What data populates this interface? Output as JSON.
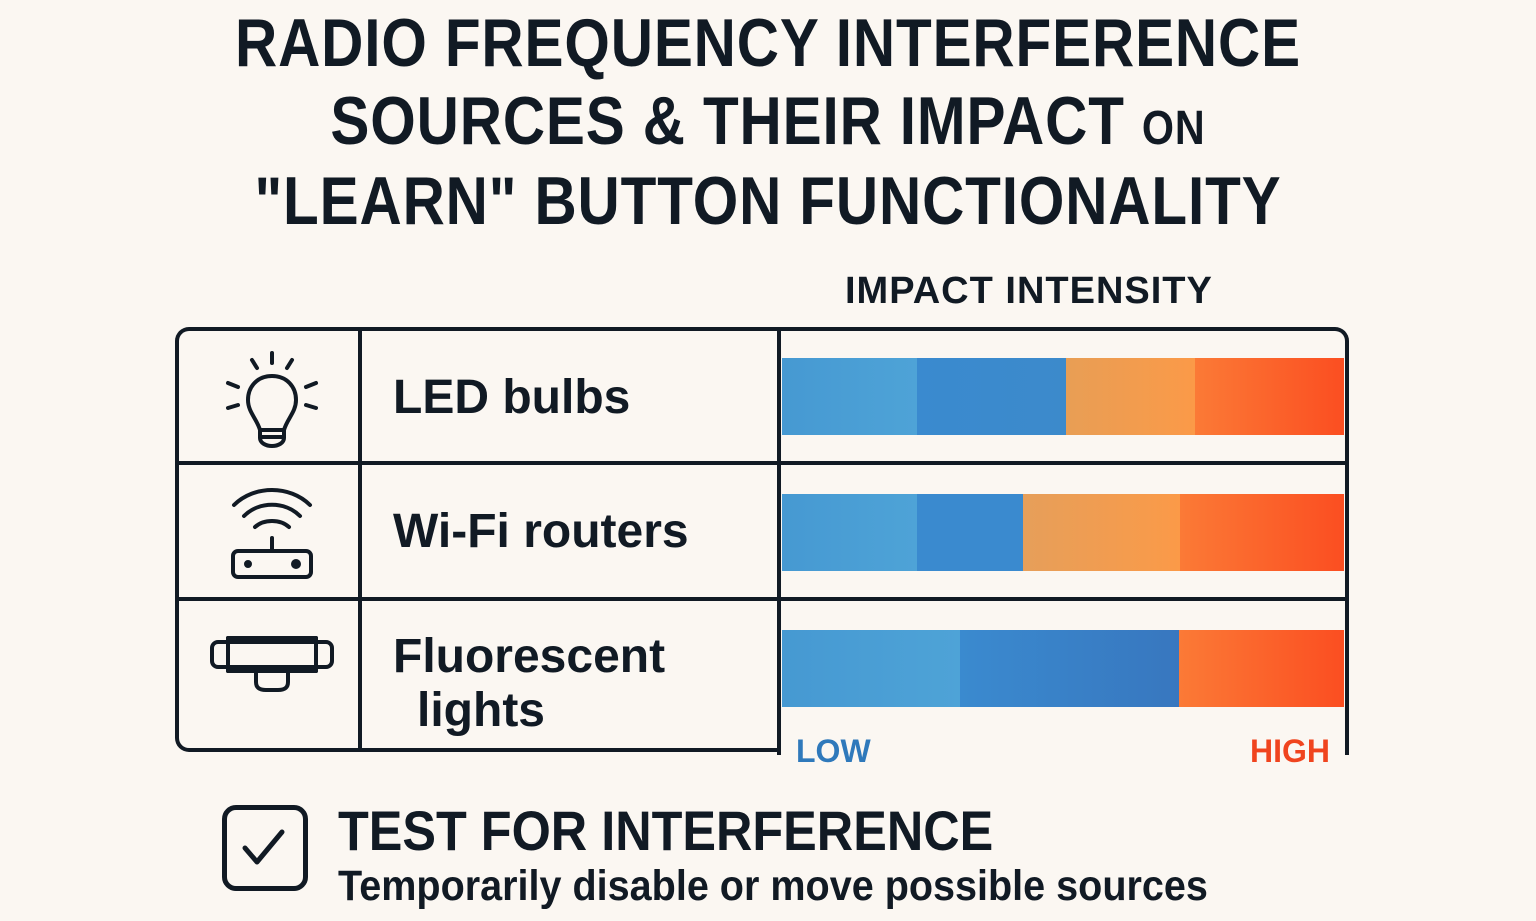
{
  "title": {
    "line1": "RADIO FREQUENCY INTERFERENCE",
    "line2_main": "SOURCES & THEIR IMPACT",
    "line2_small": "ON",
    "line3": "\"LEARN\" BUTTON FUNCTIONALITY"
  },
  "axis_title": "IMPACT INTENSITY",
  "legend": {
    "low": "LOW",
    "high": "HIGH"
  },
  "rows": [
    {
      "icon": "lightbulb-icon",
      "label": "LED bulbs"
    },
    {
      "icon": "wifi-router-icon",
      "label": "Wi-Fi routers"
    },
    {
      "icon": "fluorescent-light-icon",
      "label": "Fluorescent lights"
    }
  ],
  "footer": {
    "icon": "checkbox-checked-icon",
    "title": "TEST FOR INTERFERENCE",
    "subtitle": "Temporarily disable or move possible sources"
  },
  "colors": {
    "ink": "#111a24",
    "background": "#fbf7f2",
    "light_blue": "#4a9fd5",
    "blue": "#3a88cc",
    "light_orange": "#f09a4e",
    "orange_red": "#fb6a2e",
    "low_text": "#2f79bb",
    "high_text": "#f0441e"
  },
  "chart_data": {
    "type": "bar",
    "title": "Radio Frequency Interference Sources & Their Impact on \"Learn\" Button Functionality",
    "xlabel": "Impact Intensity (Low → High)",
    "ylabel": "",
    "categories": [
      "LED bulbs",
      "Wi-Fi routers",
      "Fluorescent lights"
    ],
    "orientation": "horizontal-stacked-segments",
    "scale": {
      "min_label": "LOW",
      "max_label": "HIGH",
      "range": [
        0,
        100
      ]
    },
    "series": [
      {
        "name": "Low (light blue)",
        "color": "#4a9fd5",
        "values": [
          24,
          24,
          32
        ]
      },
      {
        "name": "Low-Medium (blue)",
        "color": "#3a88cc",
        "values": [
          27,
          19,
          39
        ]
      },
      {
        "name": "Medium-High (light orange)",
        "color": "#f09a4e",
        "values": [
          23,
          28,
          0
        ]
      },
      {
        "name": "High (orange-red)",
        "color": "#fb6a2e",
        "values": [
          26,
          29,
          29
        ]
      }
    ],
    "grid": false,
    "legend_position": "bottom (LOW left, HIGH right)"
  }
}
